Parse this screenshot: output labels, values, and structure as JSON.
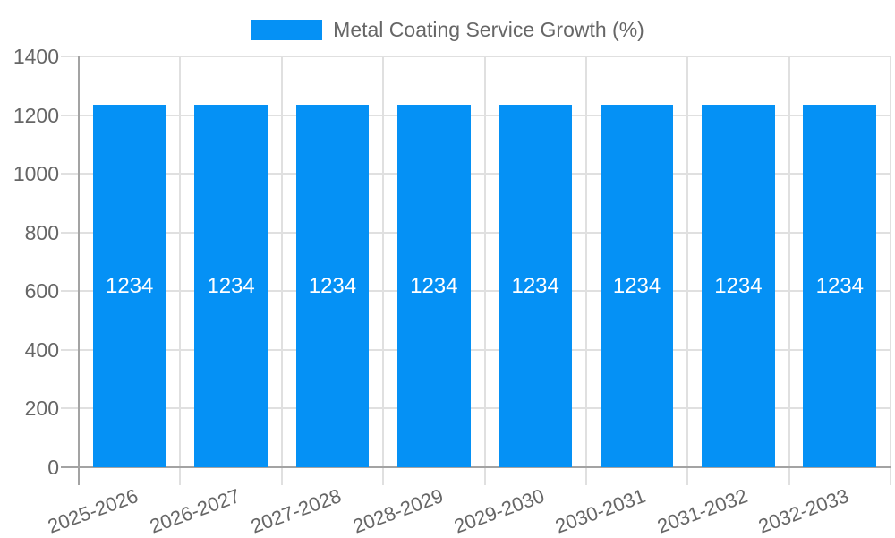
{
  "chart_data": {
    "type": "bar",
    "title": "Metal Coating Service Growth (%)",
    "categories": [
      "2025-2026",
      "2026-2027",
      "2027-2028",
      "2028-2029",
      "2029-2030",
      "2030-2031",
      "2031-2032",
      "2032-2033"
    ],
    "series": [
      {
        "name": "Metal Coating Service Growth (%)",
        "values": [
          1234,
          1234,
          1234,
          1234,
          1234,
          1234,
          1234,
          1234
        ]
      }
    ],
    "bar_value_labels": [
      "1234",
      "1234",
      "1234",
      "1234",
      "1234",
      "1234",
      "1234",
      "1234"
    ],
    "ytick_labels": [
      "0",
      "200",
      "400",
      "600",
      "800",
      "1000",
      "1200",
      "1400"
    ],
    "ylim": [
      0,
      1400
    ],
    "ytick_step": 200,
    "xlabel": "",
    "ylabel": "",
    "grid": true,
    "legend_position": "top-center",
    "x_label_rotation_deg": -20,
    "colors": {
      "bar": "#0591f5",
      "text": "#666666",
      "grid": "#e0e0e0",
      "axis": "#a3a3a3",
      "bar_label": "#ffffff",
      "background": "#ffffff"
    }
  }
}
